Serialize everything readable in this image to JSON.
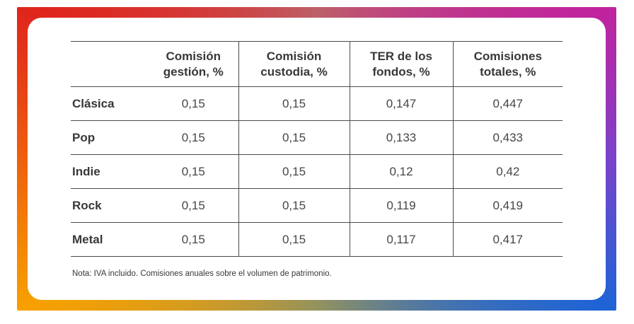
{
  "table": {
    "columns": [
      "",
      "Comisión gestión, %",
      "Comisión custodia, %",
      "TER de los fondos, %",
      "Comisiones totales, %"
    ],
    "rows": [
      {
        "label": "Clásica",
        "gestion": "0,15",
        "custodia": "0,15",
        "ter": "0,147",
        "totales": "0,447"
      },
      {
        "label": "Pop",
        "gestion": "0,15",
        "custodia": "0,15",
        "ter": "0,133",
        "totales": "0,433"
      },
      {
        "label": "Indie",
        "gestion": "0,15",
        "custodia": "0,15",
        "ter": "0,12",
        "totales": "0,42"
      },
      {
        "label": "Rock",
        "gestion": "0,15",
        "custodia": "0,15",
        "ter": "0,119",
        "totales": "0,419"
      },
      {
        "label": "Metal",
        "gestion": "0,15",
        "custodia": "0,15",
        "ter": "0,117",
        "totales": "0,417"
      }
    ],
    "note": "Nota: IVA incluido. Comisiones anuales sobre el volumen de patrimonio."
  },
  "chart_data": {
    "type": "table",
    "columns": [
      "",
      "Comisión gestión, %",
      "Comisión custodia, %",
      "TER de los fondos, %",
      "Comisiones totales, %"
    ],
    "rows": [
      [
        "Clásica",
        "0,15",
        "0,15",
        "0,147",
        "0,447"
      ],
      [
        "Pop",
        "0,15",
        "0,15",
        "0,133",
        "0,433"
      ],
      [
        "Indie",
        "0,15",
        "0,15",
        "0,12",
        "0,42"
      ],
      [
        "Rock",
        "0,15",
        "0,15",
        "0,119",
        "0,419"
      ],
      [
        "Metal",
        "0,15",
        "0,15",
        "0,117",
        "0,417"
      ]
    ],
    "note": "Nota: IVA incluido. Comisiones anuales sobre el volumen de patrimonio.",
    "layout": {
      "grid": "horizontal rules between all rows; vertical rules between numeric columns only"
    }
  },
  "colors": {
    "line": "#4b4b4b",
    "text_strong": "#383838",
    "text_value": "#464646",
    "border_gradient": {
      "top_left": "#e0251c",
      "top_center": "#bd5f68",
      "top_right": "#c0239e",
      "right_center": "#7a42cb",
      "bottom_right": "#1e63d6",
      "bottom_center": "#94935d",
      "bottom_left": "#f7a000",
      "left_center": "#ee5f0d"
    }
  }
}
